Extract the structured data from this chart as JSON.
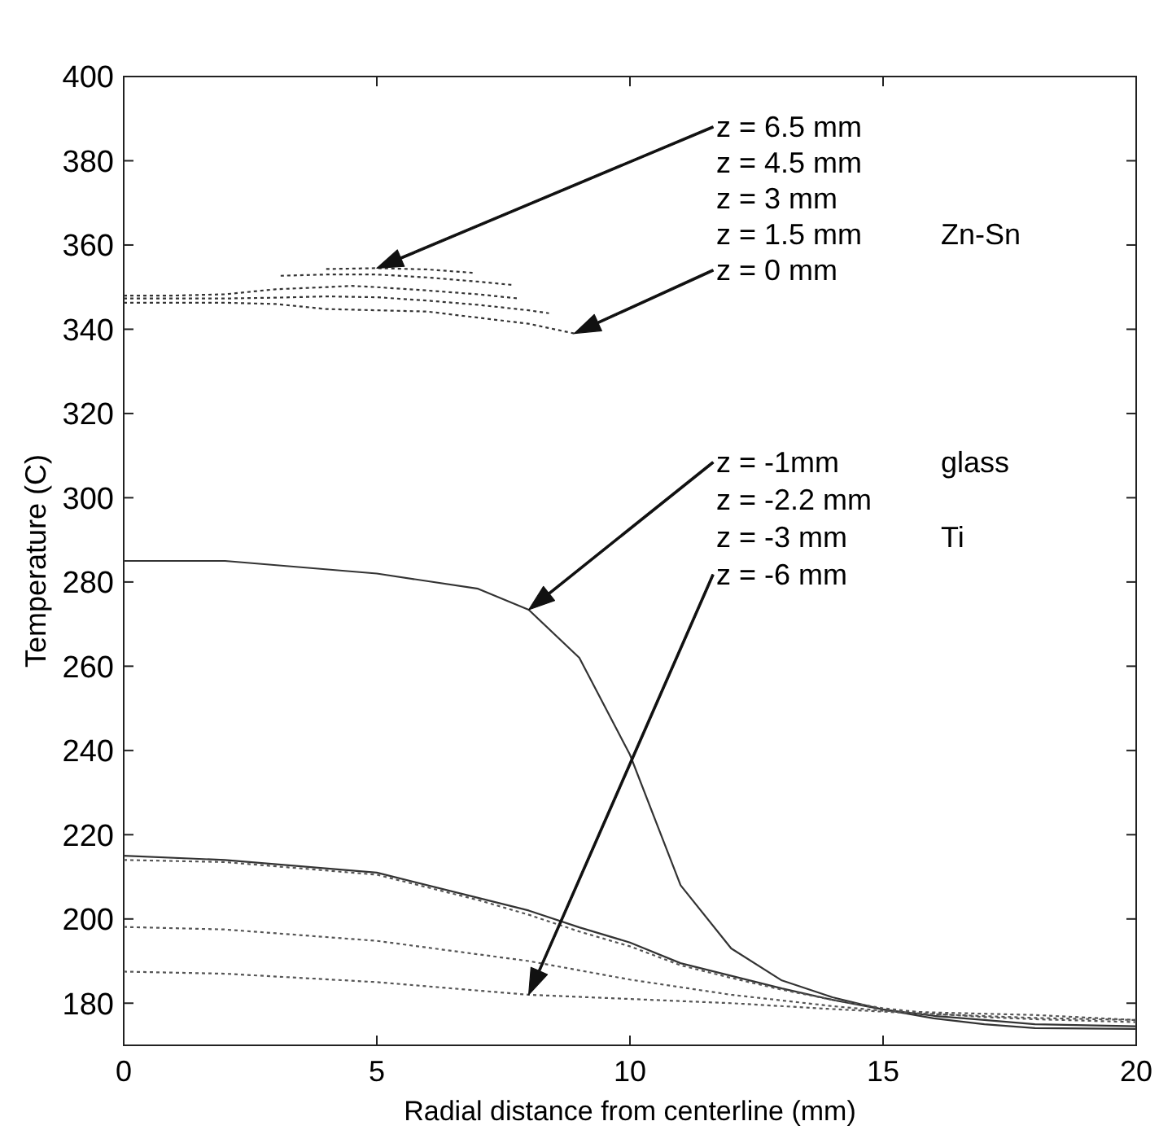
{
  "chart_data": {
    "type": "line",
    "xlabel": "Radial distance from centerline (mm)",
    "ylabel": "Temperature (C)",
    "xlim": [
      0,
      20
    ],
    "ylim": [
      170,
      400
    ],
    "xticks": [
      0,
      5,
      10,
      15,
      20
    ],
    "yticks": [
      180,
      200,
      220,
      240,
      260,
      280,
      300,
      320,
      340,
      360,
      380,
      400
    ],
    "grid": false,
    "marker": "none",
    "series": [
      {
        "color": "#333333",
        "line_style": "dotted",
        "x": [
          4,
          5,
          6,
          6.9
        ],
        "values": [
          354.3,
          354.5,
          354.2,
          353.4
        ]
      },
      {
        "color": "#333333",
        "line_style": "dotted",
        "x": [
          3.1,
          4,
          5,
          6,
          7,
          7.7
        ],
        "values": [
          352.7,
          353,
          353,
          352.3,
          351.3,
          350.5
        ]
      },
      {
        "color": "#333333",
        "line_style": "dotted",
        "x": [
          0,
          1,
          2,
          3,
          4,
          4.5,
          5,
          6,
          7,
          7.8
        ],
        "values": [
          348,
          348,
          348.3,
          349.5,
          350,
          350.3,
          350,
          349.2,
          348.3,
          347.3
        ]
      },
      {
        "color": "#333333",
        "line_style": "dotted",
        "x": [
          0,
          2,
          3,
          4,
          5,
          6,
          7,
          8,
          8.4
        ],
        "values": [
          347.3,
          347.3,
          347.5,
          347.8,
          347.6,
          346.8,
          345.8,
          344.5,
          343.8
        ]
      },
      {
        "color": "#333333",
        "line_style": "dotted",
        "x": [
          0,
          2,
          3,
          4,
          6,
          8,
          8.9
        ],
        "values": [
          346.3,
          346.3,
          346,
          344.8,
          344.2,
          341.3,
          339
        ]
      },
      {
        "color": "#333333",
        "line_style": "solid",
        "x": [
          0,
          2,
          5,
          7,
          8,
          9,
          10,
          11,
          12,
          13,
          14,
          15,
          16,
          17,
          18,
          20
        ],
        "values": [
          285,
          285,
          282,
          278.4,
          273.4,
          262,
          239,
          208,
          193,
          185.4,
          181.4,
          178.5,
          176.4,
          175,
          174.1,
          173.9
        ]
      },
      {
        "color": "#333333",
        "line_style": "solid",
        "x": [
          0,
          2,
          5,
          7,
          8,
          9,
          10,
          11,
          12,
          13,
          14,
          15,
          16,
          17,
          18,
          20
        ],
        "values": [
          215,
          214,
          211,
          205,
          202,
          198,
          194.4,
          189.5,
          186.5,
          183.5,
          180.8,
          178.5,
          177,
          176,
          175,
          174.5
        ]
      },
      {
        "color": "#555555",
        "line_style": "dotted",
        "x": [
          0,
          2,
          5,
          7,
          8,
          9,
          10,
          11,
          12,
          13,
          14,
          15,
          16,
          17,
          18,
          20
        ],
        "values": [
          214,
          213.5,
          210.5,
          204.5,
          201,
          197,
          193.5,
          189,
          186,
          183.2,
          180.8,
          178.8,
          177.5,
          176.7,
          176.2,
          175.5
        ]
      },
      {
        "color": "#555555",
        "line_style": "dotted",
        "x": [
          0,
          2,
          5,
          8,
          10,
          12,
          14,
          15,
          16,
          18,
          20
        ],
        "values": [
          198.1,
          197.5,
          194.8,
          190,
          185.6,
          182,
          179.3,
          178.2,
          177.8,
          177.2,
          176
        ]
      },
      {
        "color": "#555555",
        "line_style": "dotted",
        "x": [
          0,
          2,
          5,
          8,
          10,
          12,
          14,
          15,
          16,
          18,
          20
        ],
        "values": [
          187.5,
          187,
          185,
          182,
          181,
          180,
          178.6,
          178,
          177.4,
          176.5,
          176
        ]
      }
    ],
    "annotations": [
      "z = 6.5 mm",
      "z = 4.5 mm",
      "z = 3 mm",
      "z = 1.5 mm",
      "z = 0 mm",
      "z = -1mm",
      "z = -2.2 mm",
      "z = -3 mm",
      "z = -6 mm",
      "Zn-Sn",
      "glass",
      "Ti"
    ]
  }
}
